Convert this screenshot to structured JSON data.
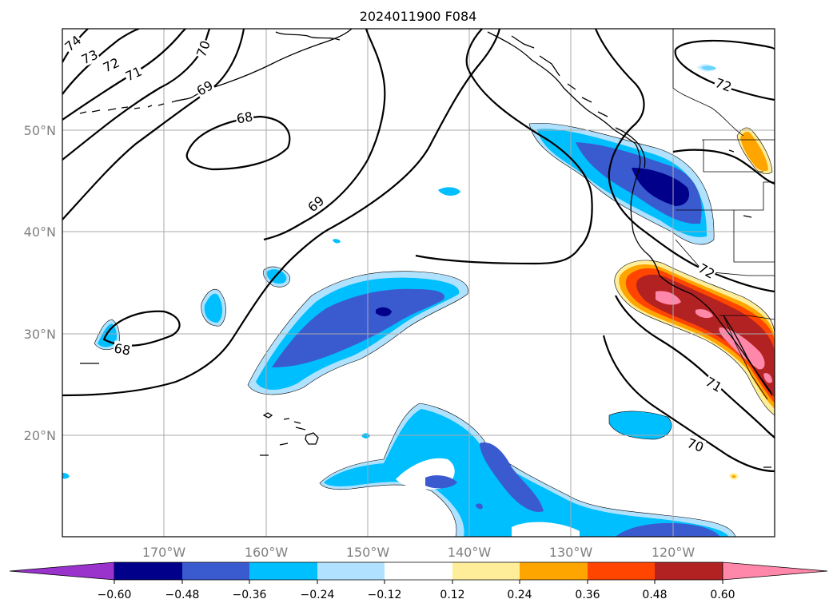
{
  "title": "2024011900 F084",
  "lat_labels": [
    "50°N",
    "40°N",
    "30°N",
    "20°N"
  ],
  "lon_labels": [
    "170°W",
    "160°W",
    "150°W",
    "140°W",
    "130°W",
    "120°W"
  ],
  "contour_labels": [
    "74",
    "73",
    "72",
    "71",
    "70",
    "69",
    "68",
    "69",
    "72",
    "72",
    "71",
    "70",
    "68"
  ],
  "colorbar": {
    "tick_labels": [
      "−0.60",
      "−0.48",
      "−0.36",
      "−0.24",
      "−0.12",
      "0.12",
      "0.24",
      "0.36",
      "0.48",
      "0.60"
    ],
    "colors": [
      "#9933cc",
      "#00008b",
      "#3a5bd0",
      "#00bfff",
      "#b0e2ff",
      "#ffffff",
      "#ffee99",
      "#ffa500",
      "#ff4500",
      "#b22222",
      "#ff88aa"
    ]
  }
}
